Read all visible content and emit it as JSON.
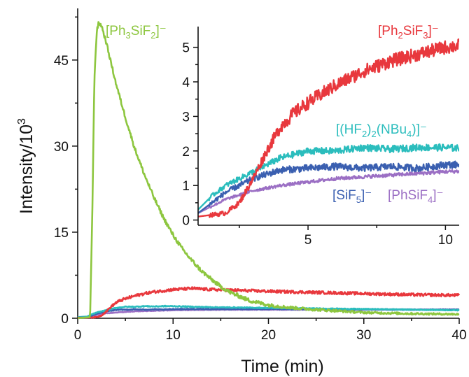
{
  "chart_data": [
    {
      "type": "line",
      "role": "main",
      "xlabel": "Time (min)",
      "ylabel": "Intensity/10",
      "ylabel_superscript": "3",
      "xlim": [
        0,
        40
      ],
      "ylim": [
        0,
        54
      ],
      "xticks": [
        0,
        10,
        20,
        30,
        40
      ],
      "yticks": [
        0,
        15,
        30,
        45
      ],
      "grid": false,
      "series": [
        {
          "name": "[Ph3SiF2]−",
          "color": "#8dc63f",
          "label_main": "[Ph",
          "label_sub1": "3",
          "label_mid": "SiF",
          "label_sub2": "2",
          "label_end": "]⁻",
          "x": [
            0,
            1.3,
            1.55,
            1.75,
            2.0,
            2.2,
            2.5,
            3.0,
            3.5,
            4,
            5,
            6,
            7,
            8,
            9,
            10,
            11,
            12,
            13,
            14,
            15,
            16,
            17,
            18,
            20,
            22,
            25,
            30,
            35,
            40
          ],
          "y": [
            0,
            0.2,
            20,
            42,
            50,
            51.5,
            51,
            48,
            44.5,
            41,
            35,
            29.5,
            25,
            21,
            17.5,
            14.5,
            12,
            10,
            8.2,
            6.8,
            5.5,
            4.5,
            3.8,
            3.1,
            2.3,
            1.9,
            1.5,
            1.0,
            0.8,
            0.7
          ]
        },
        {
          "name": "[Ph2SiF3]−",
          "color": "#e8383d",
          "label_main": "[Ph",
          "label_sub1": "2",
          "label_mid": "SiF",
          "label_sub2": "3",
          "label_end": "]⁻",
          "x": [
            0,
            1,
            2,
            2.5,
            3,
            3.5,
            4,
            4.5,
            5,
            6,
            7,
            8,
            9,
            10,
            11,
            12,
            14,
            16,
            18,
            20,
            25,
            30,
            35,
            40
          ],
          "y": [
            0.1,
            0.1,
            0.2,
            0.5,
            1.2,
            2.0,
            2.7,
            3.1,
            3.4,
            3.9,
            4.3,
            4.6,
            4.8,
            5.0,
            5.1,
            5.2,
            5.0,
            4.9,
            4.8,
            4.7,
            4.5,
            4.3,
            4.1,
            4.0
          ]
        },
        {
          "name": "[(HF2)2(NBu4)]−",
          "color": "#2bbdbd",
          "x": [
            0,
            1,
            1.5,
            2,
            3,
            4,
            5,
            6,
            7,
            8,
            9,
            10,
            12,
            15,
            20,
            25,
            30,
            35,
            40
          ],
          "y": [
            0.2,
            0.3,
            0.7,
            1.0,
            1.4,
            1.8,
            2.0,
            2.0,
            2.1,
            2.05,
            2.1,
            2.1,
            2.0,
            1.9,
            1.8,
            1.7,
            1.6,
            1.5,
            1.4
          ]
        },
        {
          "name": "[SiF5]−",
          "color": "#3a5fb0",
          "x": [
            0,
            1,
            1.5,
            2,
            3,
            4,
            5,
            6,
            7,
            8,
            9,
            10,
            12,
            15,
            20,
            25,
            30,
            35,
            40
          ],
          "y": [
            0.15,
            0.2,
            0.5,
            0.8,
            1.2,
            1.45,
            1.5,
            1.55,
            1.5,
            1.55,
            1.5,
            1.6,
            1.6,
            1.6,
            1.6,
            1.55,
            1.55,
            1.5,
            1.5
          ]
        },
        {
          "name": "[PhSiF4]−",
          "color": "#9b6fc4",
          "x": [
            0,
            1,
            1.5,
            2,
            3,
            4,
            5,
            6,
            7,
            8,
            9,
            10,
            12,
            15,
            20,
            25,
            30,
            35,
            40
          ],
          "y": [
            0.1,
            0.2,
            0.4,
            0.6,
            0.85,
            1.0,
            1.1,
            1.2,
            1.25,
            1.3,
            1.35,
            1.4,
            1.45,
            1.5,
            1.5,
            1.5,
            1.5,
            1.5,
            1.5
          ]
        }
      ]
    },
    {
      "type": "line",
      "role": "inset",
      "xlim": [
        1.0,
        10.5
      ],
      "ylim": [
        -0.15,
        5.6
      ],
      "xticks": [
        5,
        10
      ],
      "yticks": [
        0,
        1,
        2,
        3,
        4,
        5
      ],
      "grid": false,
      "series_labels": [
        {
          "series": "[Ph2SiF3]−",
          "main": "[Ph",
          "s1": "2",
          "mid": "SiF",
          "s2": "3",
          "end": "]⁻",
          "color": "#e8383d"
        },
        {
          "series": "[(HF2)2(NBu4)]−",
          "main": "[(HF",
          "s1": "2",
          "mid": ")",
          "s2": "2",
          "mid2": "(NBu",
          "s3": "4",
          "end": ")]⁻",
          "color": "#2bbdbd"
        },
        {
          "series": "[SiF5]−",
          "main": "[SiF",
          "s1": "5",
          "end": "]⁻",
          "color": "#3a5fb0"
        },
        {
          "series": "[PhSiF4]−",
          "main": "[PhSiF",
          "s1": "4",
          "end": "]⁻",
          "color": "#9b6fc4"
        }
      ]
    }
  ]
}
